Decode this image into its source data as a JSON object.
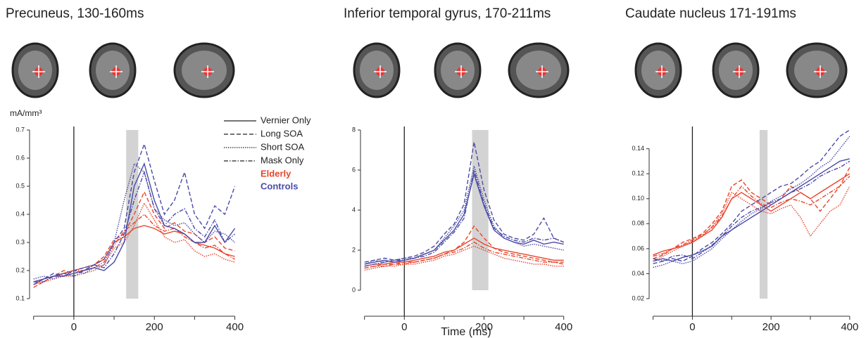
{
  "chart_data": [
    {
      "type": "line",
      "title": "Precuneus, 130-160ms",
      "ylabel": "mA/mm³",
      "x": [
        -100,
        -75,
        -50,
        -25,
        0,
        25,
        50,
        75,
        100,
        125,
        150,
        175,
        200,
        225,
        250,
        275,
        300,
        325,
        350,
        375,
        400
      ],
      "xlim": [
        -110,
        420
      ],
      "xticks": [
        0,
        200,
        400
      ],
      "xminorticks": [
        -100,
        100,
        300
      ],
      "ylim": [
        0.1,
        0.7
      ],
      "yticks": [
        0.1,
        0.2,
        0.3,
        0.4,
        0.5,
        0.6,
        0.7
      ],
      "highlight": [
        130,
        160
      ],
      "legend": {
        "styles": [
          {
            "label": "Vernier Only",
            "dash": "solid"
          },
          {
            "label": "Long SOA",
            "dash": "dashed"
          },
          {
            "label": "Short SOA",
            "dash": "dotted"
          },
          {
            "label": "Mask Only",
            "dash": "dashdot"
          }
        ],
        "groups": [
          {
            "label": "Elderly",
            "color": "#e8452c"
          },
          {
            "label": "Controls",
            "color": "#4a4aa8"
          }
        ]
      },
      "series": [
        {
          "color": "#e8452c",
          "dash": "solid",
          "values": [
            0.15,
            0.17,
            0.18,
            0.19,
            0.2,
            0.21,
            0.22,
            0.24,
            0.3,
            0.32,
            0.35,
            0.36,
            0.35,
            0.33,
            0.34,
            0.33,
            0.3,
            0.29,
            0.28,
            0.26,
            0.25
          ]
        },
        {
          "color": "#e8452c",
          "dash": "dashed",
          "values": [
            0.14,
            0.16,
            0.18,
            0.2,
            0.19,
            0.2,
            0.22,
            0.25,
            0.31,
            0.33,
            0.4,
            0.48,
            0.4,
            0.35,
            0.37,
            0.34,
            0.33,
            0.3,
            0.32,
            0.28,
            0.27
          ]
        },
        {
          "color": "#e8452c",
          "dash": "dotted",
          "values": [
            0.15,
            0.16,
            0.17,
            0.18,
            0.18,
            0.19,
            0.2,
            0.22,
            0.28,
            0.3,
            0.36,
            0.44,
            0.38,
            0.32,
            0.3,
            0.31,
            0.27,
            0.25,
            0.26,
            0.24,
            0.23
          ]
        },
        {
          "color": "#e8452c",
          "dash": "dashdot",
          "values": [
            0.16,
            0.17,
            0.18,
            0.19,
            0.2,
            0.2,
            0.21,
            0.23,
            0.29,
            0.34,
            0.37,
            0.4,
            0.36,
            0.34,
            0.35,
            0.32,
            0.3,
            0.28,
            0.29,
            0.26,
            0.24
          ]
        },
        {
          "color": "#4a4aa8",
          "dash": "solid",
          "values": [
            0.16,
            0.17,
            0.18,
            0.18,
            0.19,
            0.2,
            0.21,
            0.2,
            0.23,
            0.3,
            0.5,
            0.58,
            0.45,
            0.36,
            0.35,
            0.33,
            0.3,
            0.3,
            0.36,
            0.3,
            0.35
          ]
        },
        {
          "color": "#4a4aa8",
          "dash": "dashed",
          "values": [
            0.15,
            0.17,
            0.19,
            0.18,
            0.2,
            0.21,
            0.22,
            0.24,
            0.3,
            0.35,
            0.55,
            0.65,
            0.52,
            0.4,
            0.45,
            0.55,
            0.4,
            0.35,
            0.43,
            0.4,
            0.5
          ]
        },
        {
          "color": "#4a4aa8",
          "dash": "dotted",
          "values": [
            0.17,
            0.18,
            0.17,
            0.19,
            0.2,
            0.19,
            0.21,
            0.22,
            0.3,
            0.45,
            0.58,
            0.55,
            0.42,
            0.38,
            0.36,
            0.37,
            0.33,
            0.3,
            0.34,
            0.33,
            0.3
          ]
        },
        {
          "color": "#4a4aa8",
          "dash": "dashdot",
          "values": [
            0.16,
            0.16,
            0.18,
            0.19,
            0.18,
            0.2,
            0.22,
            0.21,
            0.26,
            0.33,
            0.45,
            0.55,
            0.42,
            0.36,
            0.4,
            0.42,
            0.35,
            0.32,
            0.38,
            0.3,
            0.33
          ]
        }
      ]
    },
    {
      "type": "line",
      "title": "Inferior temporal gyrus, 170-211ms",
      "xlabel": "Time (ms)",
      "x": [
        -100,
        -75,
        -50,
        -25,
        0,
        25,
        50,
        75,
        100,
        125,
        150,
        175,
        200,
        225,
        250,
        275,
        300,
        325,
        350,
        375,
        400
      ],
      "xlim": [
        -110,
        420
      ],
      "xticks": [
        0,
        200,
        400
      ],
      "xminorticks": [
        -100,
        100,
        300
      ],
      "ylim": [
        0,
        8
      ],
      "yticks": [
        0,
        2,
        4,
        6,
        8
      ],
      "highlight": [
        170,
        211
      ],
      "series": [
        {
          "color": "#e8452c",
          "dash": "solid",
          "values": [
            1.2,
            1.3,
            1.3,
            1.4,
            1.4,
            1.5,
            1.6,
            1.7,
            1.9,
            2.0,
            2.3,
            2.6,
            2.3,
            2.1,
            2.0,
            1.9,
            1.8,
            1.7,
            1.6,
            1.5,
            1.5
          ]
        },
        {
          "color": "#e8452c",
          "dash": "dashed",
          "values": [
            1.1,
            1.2,
            1.3,
            1.3,
            1.4,
            1.4,
            1.5,
            1.6,
            1.8,
            2.0,
            2.4,
            3.2,
            2.6,
            2.1,
            1.9,
            1.8,
            1.7,
            1.6,
            1.5,
            1.4,
            1.4
          ]
        },
        {
          "color": "#e8452c",
          "dash": "dotted",
          "values": [
            1.0,
            1.1,
            1.2,
            1.2,
            1.3,
            1.3,
            1.4,
            1.5,
            1.7,
            1.8,
            2.0,
            2.2,
            2.0,
            1.8,
            1.6,
            1.5,
            1.4,
            1.3,
            1.3,
            1.2,
            1.2
          ]
        },
        {
          "color": "#e8452c",
          "dash": "dashdot",
          "values": [
            1.1,
            1.2,
            1.2,
            1.3,
            1.3,
            1.4,
            1.5,
            1.6,
            1.8,
            1.9,
            2.1,
            2.4,
            2.1,
            1.9,
            1.8,
            1.7,
            1.6,
            1.5,
            1.4,
            1.4,
            1.3
          ]
        },
        {
          "color": "#4a4aa8",
          "dash": "solid",
          "values": [
            1.3,
            1.4,
            1.5,
            1.4,
            1.5,
            1.6,
            1.8,
            2.0,
            2.5,
            3.0,
            3.8,
            5.8,
            4.2,
            3.0,
            2.6,
            2.4,
            2.3,
            2.5,
            2.3,
            2.4,
            2.3
          ]
        },
        {
          "color": "#4a4aa8",
          "dash": "dashed",
          "values": [
            1.4,
            1.5,
            1.6,
            1.5,
            1.6,
            1.7,
            1.9,
            2.2,
            2.8,
            3.3,
            4.3,
            7.4,
            5.0,
            3.5,
            2.8,
            2.6,
            2.5,
            2.8,
            3.6,
            2.6,
            2.4
          ]
        },
        {
          "color": "#4a4aa8",
          "dash": "dotted",
          "values": [
            1.3,
            1.5,
            1.4,
            1.5,
            1.6,
            1.6,
            1.8,
            2.0,
            2.6,
            3.2,
            4.0,
            6.2,
            4.5,
            3.2,
            2.6,
            2.4,
            2.2,
            2.3,
            2.2,
            2.1,
            2.0
          ]
        },
        {
          "color": "#4a4aa8",
          "dash": "dashdot",
          "values": [
            1.2,
            1.3,
            1.4,
            1.5,
            1.5,
            1.6,
            1.7,
            1.9,
            2.4,
            2.9,
            3.6,
            6.0,
            4.3,
            3.1,
            2.7,
            2.5,
            2.4,
            2.6,
            2.5,
            2.6,
            2.4
          ]
        }
      ]
    },
    {
      "type": "line",
      "title": "Caudate nucleus 171-191ms",
      "x": [
        -100,
        -75,
        -50,
        -25,
        0,
        25,
        50,
        75,
        100,
        125,
        150,
        175,
        200,
        225,
        250,
        275,
        300,
        325,
        350,
        375,
        400
      ],
      "xlim": [
        -110,
        420
      ],
      "xticks": [
        0,
        200,
        400
      ],
      "xminorticks": [
        -100,
        100,
        300
      ],
      "ylim": [
        0.02,
        0.155
      ],
      "yticks": [
        {
          "value": 0.02,
          "label": "0.02"
        },
        {
          "value": 0.04,
          "label": "0.04"
        },
        {
          "value": 0.06,
          "label": "0.06"
        },
        {
          "value": 0.08,
          "label": "0.08"
        },
        {
          "value": 0.1,
          "label": "0.10"
        },
        {
          "value": 0.12,
          "label": "0.12"
        },
        {
          "value": 0.14,
          "label": "0.14"
        }
      ],
      "highlight": [
        171,
        191
      ],
      "series": [
        {
          "color": "#e8452c",
          "dash": "solid",
          "values": [
            0.055,
            0.058,
            0.06,
            0.062,
            0.065,
            0.07,
            0.075,
            0.085,
            0.1,
            0.105,
            0.1,
            0.095,
            0.09,
            0.095,
            0.1,
            0.105,
            0.1,
            0.105,
            0.11,
            0.115,
            0.12
          ]
        },
        {
          "color": "#e8452c",
          "dash": "dashed",
          "values": [
            0.052,
            0.055,
            0.06,
            0.065,
            0.068,
            0.072,
            0.08,
            0.09,
            0.11,
            0.115,
            0.105,
            0.1,
            0.095,
            0.1,
            0.11,
            0.105,
            0.1,
            0.09,
            0.1,
            0.11,
            0.125
          ]
        },
        {
          "color": "#e8452c",
          "dash": "dotted",
          "values": [
            0.05,
            0.054,
            0.058,
            0.062,
            0.066,
            0.07,
            0.078,
            0.088,
            0.105,
            0.1,
            0.095,
            0.09,
            0.088,
            0.092,
            0.095,
            0.085,
            0.07,
            0.08,
            0.09,
            0.095,
            0.11
          ]
        },
        {
          "color": "#e8452c",
          "dash": "dashdot",
          "values": [
            0.054,
            0.056,
            0.06,
            0.063,
            0.067,
            0.071,
            0.077,
            0.086,
            0.1,
            0.11,
            0.102,
            0.096,
            0.093,
            0.097,
            0.1,
            0.098,
            0.095,
            0.1,
            0.105,
            0.11,
            0.118
          ]
        },
        {
          "color": "#4a4aa8",
          "dash": "solid",
          "values": [
            0.05,
            0.052,
            0.05,
            0.053,
            0.055,
            0.058,
            0.062,
            0.07,
            0.075,
            0.08,
            0.085,
            0.09,
            0.095,
            0.1,
            0.105,
            0.11,
            0.115,
            0.12,
            0.125,
            0.13,
            0.132
          ]
        },
        {
          "color": "#4a4aa8",
          "dash": "dashed",
          "values": [
            0.048,
            0.05,
            0.052,
            0.05,
            0.054,
            0.06,
            0.065,
            0.072,
            0.08,
            0.09,
            0.095,
            0.1,
            0.105,
            0.11,
            0.112,
            0.118,
            0.125,
            0.13,
            0.14,
            0.15,
            0.155
          ]
        },
        {
          "color": "#4a4aa8",
          "dash": "dotted",
          "values": [
            0.045,
            0.047,
            0.05,
            0.048,
            0.05,
            0.055,
            0.06,
            0.068,
            0.075,
            0.082,
            0.088,
            0.092,
            0.098,
            0.102,
            0.108,
            0.112,
            0.118,
            0.125,
            0.13,
            0.14,
            0.15
          ]
        },
        {
          "color": "#4a4aa8",
          "dash": "dashdot",
          "values": [
            0.052,
            0.05,
            0.054,
            0.055,
            0.052,
            0.057,
            0.063,
            0.07,
            0.078,
            0.085,
            0.09,
            0.093,
            0.097,
            0.1,
            0.105,
            0.108,
            0.112,
            0.118,
            0.122,
            0.125,
            0.13
          ]
        }
      ]
    }
  ]
}
